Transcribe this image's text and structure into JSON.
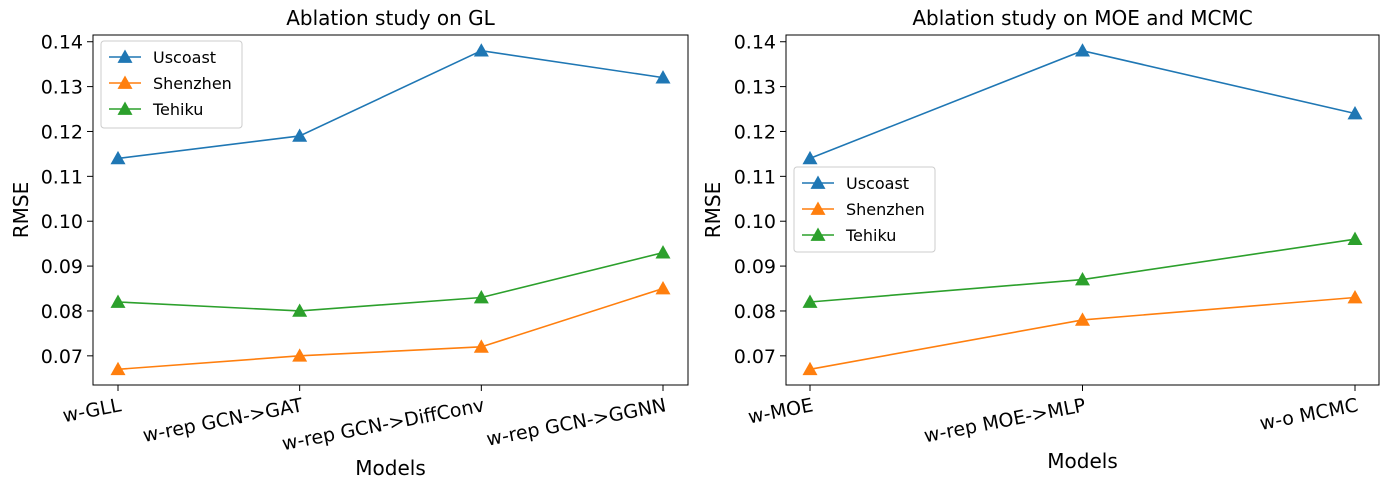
{
  "chart_data": [
    {
      "type": "line",
      "title": "Ablation study on GL",
      "xlabel": "Models",
      "ylabel": "RMSE",
      "categories": [
        "w-GLL",
        "w-rep GCN->GAT",
        "w-rep GCN->DiffConv",
        "w-rep GCN->GGNN"
      ],
      "ylim": [
        0.0635,
        0.1415
      ],
      "yticks": [
        "0.07",
        "0.08",
        "0.09",
        "0.10",
        "0.11",
        "0.12",
        "0.13",
        "0.14"
      ],
      "grid": false,
      "legend_position": "upper-left",
      "series": [
        {
          "name": "Uscoast",
          "color": "#1f77b4",
          "marker": "triangle",
          "values": [
            0.114,
            0.119,
            0.138,
            0.132
          ]
        },
        {
          "name": "Shenzhen",
          "color": "#ff7f0e",
          "marker": "triangle",
          "values": [
            0.067,
            0.07,
            0.072,
            0.085
          ]
        },
        {
          "name": "Tehiku",
          "color": "#2ca02c",
          "marker": "triangle",
          "values": [
            0.082,
            0.08,
            0.083,
            0.093
          ]
        }
      ]
    },
    {
      "type": "line",
      "title": "Ablation study on MOE and MCMC",
      "xlabel": "Models",
      "ylabel": "RMSE",
      "categories": [
        "w-MOE",
        "w-rep MOE->MLP",
        "w-o MCMC"
      ],
      "ylim": [
        0.0635,
        0.1415
      ],
      "yticks": [
        "0.07",
        "0.08",
        "0.09",
        "0.10",
        "0.11",
        "0.12",
        "0.13",
        "0.14"
      ],
      "grid": false,
      "legend_position": "center-left",
      "series": [
        {
          "name": "Uscoast",
          "color": "#1f77b4",
          "marker": "triangle",
          "values": [
            0.114,
            0.138,
            0.124
          ]
        },
        {
          "name": "Shenzhen",
          "color": "#ff7f0e",
          "marker": "triangle",
          "values": [
            0.067,
            0.078,
            0.083
          ]
        },
        {
          "name": "Tehiku",
          "color": "#2ca02c",
          "marker": "triangle",
          "values": [
            0.082,
            0.087,
            0.096
          ]
        }
      ]
    }
  ]
}
